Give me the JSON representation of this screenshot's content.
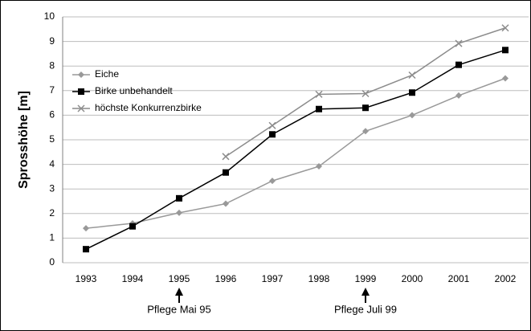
{
  "chart_data": {
    "type": "line",
    "y_label": "Sprosshöhe [m]",
    "categories": [
      "1993",
      "1994",
      "1995",
      "1996",
      "1997",
      "1998",
      "1999",
      "2000",
      "2001",
      "2002"
    ],
    "series": [
      {
        "name": "Eiche",
        "color": "#999999",
        "marker": "diamond",
        "values": [
          1.4,
          1.6,
          2.03,
          2.4,
          3.33,
          3.92,
          5.35,
          6.0,
          6.8,
          7.5
        ]
      },
      {
        "name": "Birke unbehandelt",
        "color": "#000000",
        "marker": "square",
        "values": [
          0.55,
          1.48,
          2.62,
          3.67,
          5.22,
          6.25,
          6.3,
          6.92,
          8.05,
          8.65
        ]
      },
      {
        "name": "höchste Konkurrenzbirke",
        "color": "#8c8c8c",
        "marker": "x",
        "values": [
          null,
          null,
          null,
          4.32,
          5.58,
          6.85,
          6.88,
          7.63,
          8.92,
          9.55
        ]
      }
    ],
    "ylim": [
      0,
      10
    ],
    "yticks": [
      0,
      1,
      2,
      3,
      4,
      5,
      6,
      7,
      8,
      9,
      10
    ],
    "grid": true,
    "legend": "upper left",
    "annotations": [
      {
        "text": "Pflege Mai 95",
        "x": "1995"
      },
      {
        "text": "Pflege Juli 99",
        "x": "1999"
      }
    ]
  }
}
